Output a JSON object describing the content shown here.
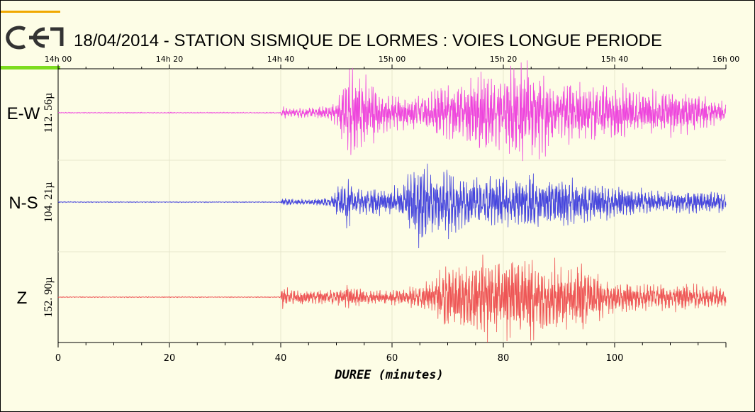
{
  "title": "18/04/2014  -  STATION SISMIQUE DE LORMES : VOIES LONGUE PERIODE",
  "logo_text": "cea",
  "chart_data": {
    "type": "line",
    "title": "18/04/2014  -  STATION SISMIQUE DE LORMES : VOIES LONGUE PERIODE",
    "xlabel": "DUREE (minutes)",
    "xlim": [
      0,
      120
    ],
    "x_ticks": [
      0,
      20,
      40,
      60,
      80,
      100
    ],
    "time_ticks": [
      {
        "minute": 0,
        "label": "14h 00"
      },
      {
        "minute": 20,
        "label": "14h 20"
      },
      {
        "minute": 40,
        "label": "14h 40"
      },
      {
        "minute": 60,
        "label": "15h 00"
      },
      {
        "minute": 80,
        "label": "15h 20"
      },
      {
        "minute": 100,
        "label": "15h 40"
      },
      {
        "minute": 120,
        "label": "16h 00"
      }
    ],
    "grid": true,
    "series": [
      {
        "name": "E-W",
        "amplitude_label": "112. 56µ",
        "color": "#ee44dd",
        "envelope": [
          [
            0,
            0.01
          ],
          [
            40,
            0.01
          ],
          [
            40.3,
            0.15
          ],
          [
            41,
            0.1
          ],
          [
            45,
            0.1
          ],
          [
            48,
            0.12
          ],
          [
            50,
            0.25
          ],
          [
            51,
            0.6
          ],
          [
            52,
            0.75
          ],
          [
            53,
            0.95
          ],
          [
            55,
            0.7
          ],
          [
            57,
            0.6
          ],
          [
            58,
            0.4
          ],
          [
            60,
            0.35
          ],
          [
            63,
            0.3
          ],
          [
            67,
            0.45
          ],
          [
            69,
            0.6
          ],
          [
            72,
            0.55
          ],
          [
            75,
            0.8
          ],
          [
            77,
            0.75
          ],
          [
            80,
            0.7
          ],
          [
            82,
            0.95
          ],
          [
            83,
            1.0
          ],
          [
            85,
            1.0
          ],
          [
            88,
            0.75
          ],
          [
            90,
            0.7
          ],
          [
            95,
            0.6
          ],
          [
            100,
            0.55
          ],
          [
            105,
            0.45
          ],
          [
            110,
            0.45
          ],
          [
            115,
            0.35
          ],
          [
            120,
            0.2
          ]
        ]
      },
      {
        "name": "N-S",
        "amplitude_label": "104. 21µ",
        "color": "#4444dd",
        "envelope": [
          [
            0,
            0.01
          ],
          [
            40,
            0.01
          ],
          [
            40.3,
            0.1
          ],
          [
            41,
            0.08
          ],
          [
            45,
            0.06
          ],
          [
            49,
            0.1
          ],
          [
            51,
            0.45
          ],
          [
            52,
            0.55
          ],
          [
            53,
            0.35
          ],
          [
            55,
            0.3
          ],
          [
            60,
            0.3
          ],
          [
            62,
            0.4
          ],
          [
            64,
            0.9
          ],
          [
            65,
            1.0
          ],
          [
            66,
            0.8
          ],
          [
            68,
            0.6
          ],
          [
            70,
            0.85
          ],
          [
            72,
            0.55
          ],
          [
            75,
            0.5
          ],
          [
            78,
            0.6
          ],
          [
            80,
            0.55
          ],
          [
            82,
            0.5
          ],
          [
            85,
            0.6
          ],
          [
            88,
            0.55
          ],
          [
            92,
            0.5
          ],
          [
            95,
            0.45
          ],
          [
            100,
            0.35
          ],
          [
            105,
            0.3
          ],
          [
            110,
            0.25
          ],
          [
            115,
            0.25
          ],
          [
            120,
            0.2
          ]
        ]
      },
      {
        "name": "Z",
        "amplitude_label": "152. 90µ",
        "color": "#ee5555",
        "envelope": [
          [
            0,
            0.01
          ],
          [
            40,
            0.01
          ],
          [
            40.2,
            0.3
          ],
          [
            41,
            0.2
          ],
          [
            45,
            0.15
          ],
          [
            50,
            0.2
          ],
          [
            52,
            0.25
          ],
          [
            55,
            0.15
          ],
          [
            60,
            0.15
          ],
          [
            65,
            0.25
          ],
          [
            68,
            0.4
          ],
          [
            70,
            0.85
          ],
          [
            72,
            0.6
          ],
          [
            74,
            0.75
          ],
          [
            76,
            1.0
          ],
          [
            78,
            0.8
          ],
          [
            80,
            0.85
          ],
          [
            82,
            0.9
          ],
          [
            84,
            1.0
          ],
          [
            86,
            0.8
          ],
          [
            88,
            0.75
          ],
          [
            90,
            0.85
          ],
          [
            92,
            0.7
          ],
          [
            94,
            0.85
          ],
          [
            96,
            0.55
          ],
          [
            100,
            0.35
          ],
          [
            105,
            0.3
          ],
          [
            110,
            0.3
          ],
          [
            115,
            0.28
          ],
          [
            120,
            0.2
          ]
        ]
      }
    ]
  }
}
